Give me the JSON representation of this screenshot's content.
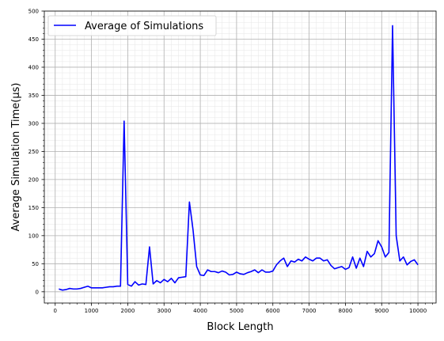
{
  "chart_data": {
    "type": "line",
    "title": "",
    "xlabel": "Block Length",
    "ylabel": "Average Simulation Time(μs)",
    "xlim": [
      -300,
      10500
    ],
    "ylim": [
      -20,
      500
    ],
    "xticks": [
      0,
      1000,
      2000,
      3000,
      4000,
      5000,
      6000,
      7000,
      8000,
      9000,
      10000
    ],
    "yticks": [
      0,
      50,
      100,
      150,
      200,
      250,
      300,
      350,
      400,
      450,
      500
    ],
    "grid": true,
    "minor_grid": true,
    "legend_position": "top-left",
    "series": [
      {
        "name": "Average of Simulations",
        "color": "#0000ff",
        "x": [
          100,
          200,
          300,
          400,
          500,
          600,
          700,
          800,
          900,
          1000,
          1100,
          1200,
          1300,
          1400,
          1500,
          1600,
          1700,
          1800,
          1900,
          2000,
          2100,
          2200,
          2300,
          2400,
          2500,
          2600,
          2700,
          2800,
          2900,
          3000,
          3100,
          3200,
          3300,
          3400,
          3500,
          3600,
          3700,
          3800,
          3900,
          4000,
          4100,
          4200,
          4300,
          4400,
          4500,
          4600,
          4700,
          4800,
          4900,
          5000,
          5100,
          5200,
          5300,
          5400,
          5500,
          5600,
          5700,
          5800,
          5900,
          6000,
          6100,
          6200,
          6300,
          6400,
          6500,
          6600,
          6700,
          6800,
          6900,
          7000,
          7100,
          7200,
          7300,
          7400,
          7500,
          7600,
          7700,
          7800,
          7900,
          8000,
          8100,
          8200,
          8300,
          8400,
          8500,
          8600,
          8700,
          8800,
          8900,
          9000,
          9100,
          9200,
          9300,
          9400,
          9500,
          9600,
          9700,
          9800,
          9900,
          10000
        ],
        "y": [
          5,
          3,
          4,
          6,
          5,
          5,
          6,
          8,
          10,
          7,
          7,
          7,
          7,
          8,
          9,
          9,
          10,
          10,
          304,
          13,
          10,
          18,
          12,
          14,
          13,
          80,
          14,
          20,
          16,
          22,
          18,
          24,
          16,
          25,
          26,
          27,
          160,
          110,
          45,
          30,
          29,
          39,
          36,
          36,
          34,
          37,
          35,
          30,
          31,
          35,
          32,
          31,
          34,
          36,
          39,
          34,
          39,
          35,
          35,
          37,
          48,
          55,
          60,
          45,
          55,
          53,
          58,
          55,
          62,
          58,
          55,
          60,
          60,
          55,
          57,
          47,
          41,
          43,
          45,
          40,
          43,
          62,
          42,
          60,
          45,
          72,
          62,
          68,
          91,
          80,
          62,
          70,
          474,
          100,
          55,
          62,
          48,
          54,
          57,
          48
        ]
      }
    ]
  }
}
